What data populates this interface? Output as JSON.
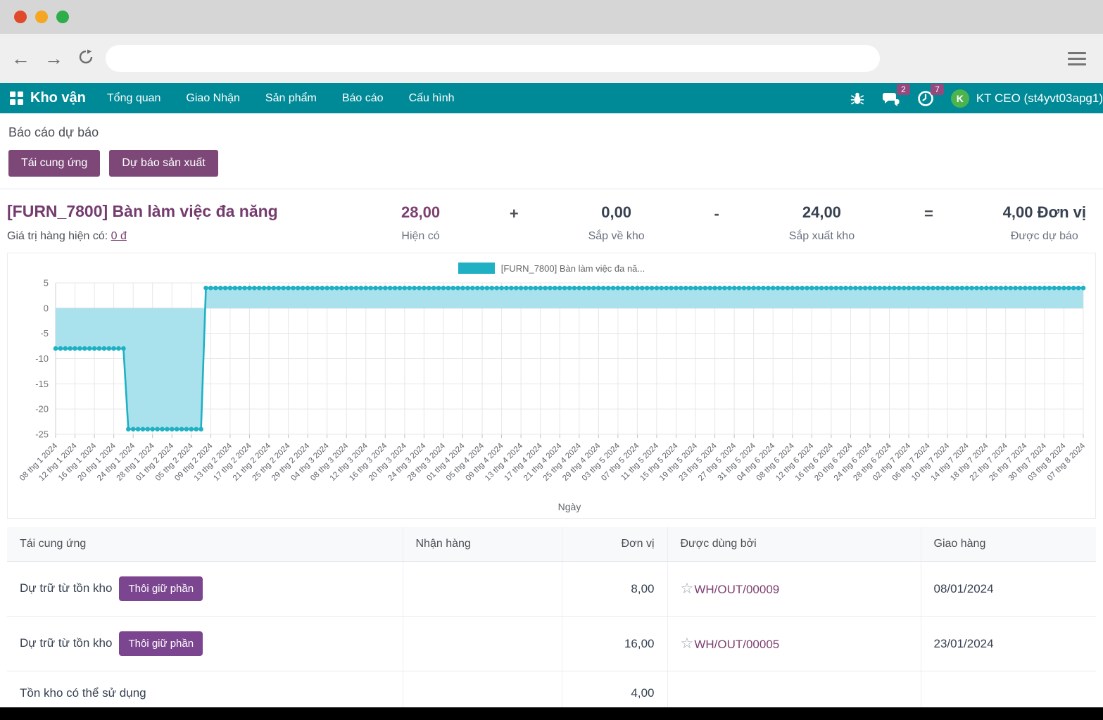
{
  "browser": {
    "address_value": "",
    "traffic_lights": [
      "#e0492c",
      "#f5a623",
      "#2ead4b"
    ]
  },
  "navbar": {
    "brand": "Kho vận",
    "items": [
      "Tổng quan",
      "Giao Nhận",
      "Sản phẩm",
      "Báo cáo",
      "Cấu hình"
    ],
    "chat_badge": "2",
    "activity_badge": "7",
    "avatar_letter": "K",
    "user": "KT CEO (st4yvt03apg1)"
  },
  "page": {
    "breadcrumb": "Báo cáo dự báo"
  },
  "actions": {
    "replenish": "Tái cung ứng",
    "forecast_production": "Dự báo sản xuất"
  },
  "product": {
    "title": "[FURN_7800] Bàn làm việc đa năng",
    "stock_value_label": "Giá trị hàng hiện có:",
    "stock_value": "0 đ",
    "on_hand": "28,00",
    "on_hand_label": "Hiện có",
    "op_plus": "+",
    "incoming": "0,00",
    "incoming_label": "Sắp về kho",
    "op_minus": "-",
    "outgoing": "24,00",
    "outgoing_label": "Sắp xuất kho",
    "op_equals": "=",
    "forecasted": "4,00 Đơn vị",
    "forecasted_label": "Được dự báo"
  },
  "chart_data": {
    "type": "area",
    "legend": "[FURN_7800] Bàn làm việc đa nă...",
    "legend_position": "top",
    "xlabel": "Ngày",
    "ylabel": "",
    "ylim": [
      -25,
      5
    ],
    "yticks": [
      5,
      0,
      -5,
      -10,
      -15,
      -20,
      -25
    ],
    "grid": true,
    "x_start_date": "08 thg 1 2024",
    "x_end_date": "07 thg 8 2024",
    "days_total": 212,
    "x_tick_step_days": 4,
    "x_tick_labels": [
      "08 thg 1 2024",
      "12 thg 1 2024",
      "16 thg 1 2024",
      "20 thg 1 2024",
      "24 thg 1 2024",
      "28 thg 1 2024",
      "01 thg 2 2024",
      "05 thg 2 2024",
      "09 thg 2 2024",
      "13 thg 2 2024",
      "17 thg 2 2024",
      "21 thg 2 2024",
      "25 thg 2 2024",
      "29 thg 2 2024",
      "04 thg 3 2024",
      "08 thg 3 2024",
      "12 thg 3 2024",
      "16 thg 3 2024",
      "20 thg 3 2024",
      "24 thg 3 2024",
      "28 thg 3 2024",
      "01 thg 4 2024",
      "05 thg 4 2024",
      "09 thg 4 2024",
      "13 thg 4 2024",
      "17 thg 4 2024",
      "21 thg 4 2024",
      "25 thg 4 2024",
      "29 thg 4 2024",
      "03 thg 5 2024",
      "07 thg 5 2024",
      "11 thg 5 2024",
      "15 thg 5 2024",
      "19 thg 5 2024",
      "23 thg 5 2024",
      "27 thg 5 2024",
      "31 thg 5 2024",
      "04 thg 6 2024",
      "08 thg 6 2024",
      "12 thg 6 2024",
      "16 thg 6 2024",
      "20 thg 6 2024",
      "24 thg 6 2024",
      "28 thg 6 2024",
      "02 thg 7 2024",
      "06 thg 7 2024",
      "10 thg 7 2024",
      "14 thg 7 2024",
      "18 thg 7 2024",
      "22 thg 7 2024",
      "26 thg 7 2024",
      "30 thg 7 2024",
      "03 thg 8 2024",
      "07 thg 8 2024"
    ],
    "series": [
      {
        "name": "[FURN_7800] Bàn làm việc đa năng",
        "point_style": "circle",
        "segments": [
          {
            "from_day": 0,
            "to_day": 14,
            "from_date": "08 thg 1 2024",
            "to_date": "22 thg 1 2024",
            "value": -8
          },
          {
            "from_day": 15,
            "to_day": 30,
            "from_date": "23 thg 1 2024",
            "to_date": "07 thg 2 2024",
            "value": -24
          },
          {
            "from_day": 31,
            "to_day": 212,
            "from_date": "08 thg 2 2024",
            "to_date": "07 thg 8 2024",
            "value": 4
          }
        ]
      }
    ]
  },
  "table": {
    "headers": [
      "Tái cung ứng",
      "Nhận hàng",
      "Đơn vị",
      "Được dùng bởi",
      "Giao hàng"
    ],
    "rows": [
      {
        "label": "Dự trữ từ tồn kho",
        "action": "Thôi giữ phần",
        "receipt": "",
        "qty": "8,00",
        "used_by": "WH/OUT/00009",
        "delivery": "08/01/2024"
      },
      {
        "label": "Dự trữ từ tồn kho",
        "action": "Thôi giữ phần",
        "receipt": "",
        "qty": "16,00",
        "used_by": "WH/OUT/00005",
        "delivery": "23/01/2024"
      },
      {
        "label": "Tồn kho có thể sử dụng",
        "action": "",
        "receipt": "",
        "qty": "4,00",
        "used_by": "",
        "delivery": ""
      }
    ]
  },
  "colors": {
    "navbar": "#008a97",
    "primary_button": "#7d4878",
    "unreserve_button": "#7b4590",
    "badge": "#94497f",
    "avatar": "#4db34f",
    "link": "#7d3f70",
    "title": "#743c6e",
    "chart_line": "#1fb0c4",
    "chart_fill": "#a9e2ec"
  }
}
